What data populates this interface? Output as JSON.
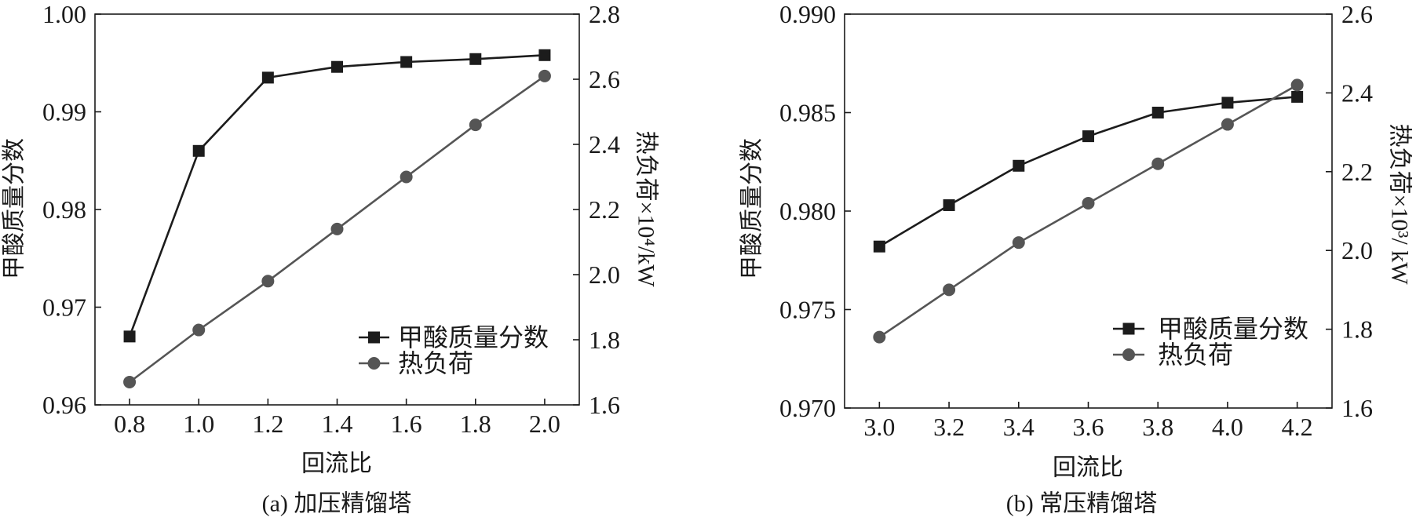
{
  "chart_data": [
    {
      "type": "line",
      "caption": "(a) 加压精馏塔",
      "xlabel": "回流比",
      "ylabel": "甲酸质量分数",
      "y2label": "热负荷×10⁴/kW",
      "xlim": [
        0.7,
        2.1
      ],
      "ylim": [
        0.96,
        1.0
      ],
      "y2lim": [
        1.6,
        2.8
      ],
      "xticks": [
        "0.8",
        "1.0",
        "1.2",
        "1.4",
        "1.6",
        "1.8",
        "2.0"
      ],
      "yticks": [
        "0.96",
        "0.97",
        "0.98",
        "0.99",
        "1.00"
      ],
      "y2ticks": [
        "1.6",
        "1.8",
        "2.0",
        "2.2",
        "2.4",
        "2.6",
        "2.8"
      ],
      "x": [
        0.8,
        1.0,
        1.2,
        1.4,
        1.6,
        1.8,
        2.0
      ],
      "series": [
        {
          "name": "甲酸质量分数",
          "axis": "left",
          "marker": "square",
          "color": "#1c1c1c",
          "values": [
            0.967,
            0.986,
            0.9935,
            0.9946,
            0.9951,
            0.9954,
            0.9958
          ]
        },
        {
          "name": "热负荷",
          "axis": "right",
          "marker": "circle",
          "color": "#555555",
          "values": [
            1.67,
            1.83,
            1.98,
            2.14,
            2.3,
            2.46,
            2.61
          ]
        }
      ],
      "legend": "bottom-right",
      "grid": false
    },
    {
      "type": "line",
      "caption": "(b) 常压精馏塔",
      "xlabel": "回流比",
      "ylabel": "甲酸质量分数",
      "y2label": "热负荷×10³/ kW",
      "xlim": [
        2.9,
        4.3
      ],
      "ylim": [
        0.97,
        0.99
      ],
      "y2lim": [
        1.6,
        2.6
      ],
      "xticks": [
        "3.0",
        "3.2",
        "3.4",
        "3.6",
        "3.8",
        "4.0",
        "4.2"
      ],
      "yticks": [
        "0.970",
        "0.975",
        "0.980",
        "0.985",
        "0.990"
      ],
      "y2ticks": [
        "1.6",
        "1.8",
        "2.0",
        "2.2",
        "2.4",
        "2.6"
      ],
      "x": [
        3.0,
        3.2,
        3.4,
        3.6,
        3.8,
        4.0,
        4.2
      ],
      "series": [
        {
          "name": "甲酸质量分数",
          "axis": "left",
          "marker": "square",
          "color": "#1c1c1c",
          "values": [
            0.9782,
            0.9803,
            0.9823,
            0.9838,
            0.985,
            0.9855,
            0.9858
          ]
        },
        {
          "name": "热负荷",
          "axis": "right",
          "marker": "circle",
          "color": "#555555",
          "values": [
            1.78,
            1.9,
            2.02,
            2.12,
            2.22,
            2.32,
            2.42
          ]
        }
      ],
      "legend": "bottom-right",
      "grid": false
    }
  ]
}
